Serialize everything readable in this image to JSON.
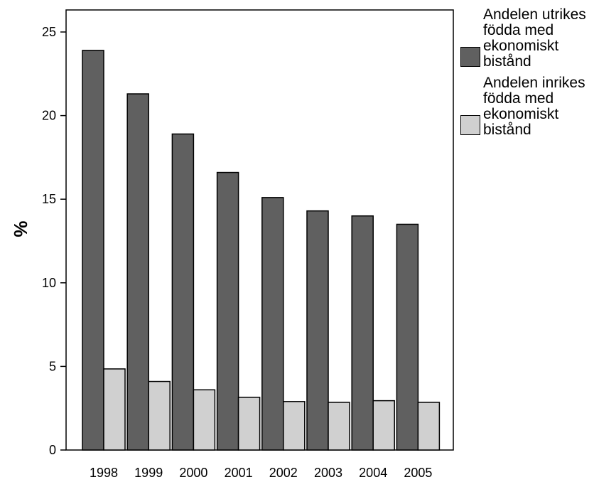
{
  "chart_data": {
    "type": "bar",
    "title": "",
    "xlabel": "",
    "ylabel": "%",
    "ylim": [
      0,
      25
    ],
    "yticks": [
      "0",
      "5",
      "10",
      "15",
      "20",
      "25"
    ],
    "categories": [
      "1998",
      "1999",
      "2000",
      "2001",
      "2002",
      "2003",
      "2004",
      "2005"
    ],
    "series": [
      {
        "name": "Andelen utrikes födda med ekonomiskt bistånd",
        "color": "#606060",
        "values": [
          23.9,
          21.3,
          18.9,
          16.6,
          15.1,
          14.3,
          14.0,
          13.5
        ]
      },
      {
        "name": "Andelen inrikes födda med ekonomiskt bistånd",
        "color": "#d0d0d0",
        "values": [
          4.85,
          4.1,
          3.6,
          3.15,
          2.9,
          2.85,
          2.95,
          2.85
        ]
      }
    ],
    "grid": false,
    "legend_position": "right"
  }
}
